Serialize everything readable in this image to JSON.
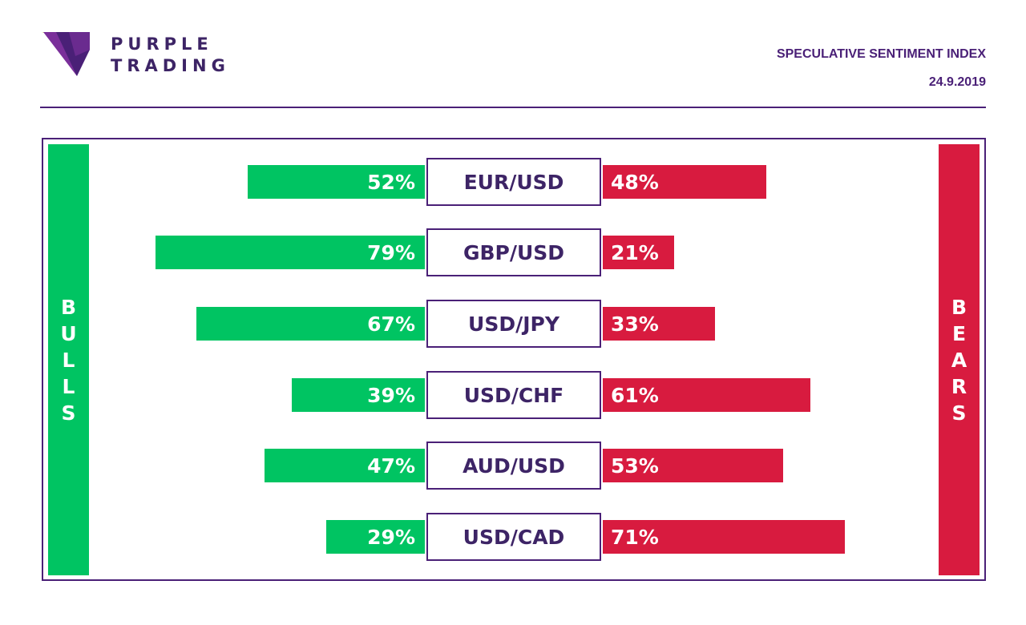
{
  "brand": {
    "line1": "PURPLE",
    "line2": "TRADING"
  },
  "header": {
    "title": "SPECULATIVE SENTIMENT INDEX",
    "date": "24.9.2019"
  },
  "colors": {
    "bull": "#00c462",
    "bear": "#d81b3f",
    "brand": "#4a2077"
  },
  "chart_data": {
    "type": "bar",
    "title": "SPECULATIVE SENTIMENT INDEX",
    "left_label": "BULLS",
    "right_label": "BEARS",
    "categories": [
      "EUR/USD",
      "GBP/USD",
      "USD/JPY",
      "USD/CHF",
      "AUD/USD",
      "USD/CAD"
    ],
    "series": [
      {
        "name": "BULLS",
        "values": [
          52,
          79,
          67,
          39,
          47,
          29
        ]
      },
      {
        "name": "BEARS",
        "values": [
          48,
          21,
          33,
          61,
          53,
          71
        ]
      }
    ],
    "value_labels": {
      "bulls": [
        "52%",
        "79%",
        "67%",
        "39%",
        "47%",
        "29%"
      ],
      "bears": [
        "48%",
        "21%",
        "33%",
        "61%",
        "53%",
        "71%"
      ]
    },
    "unit": "%"
  }
}
